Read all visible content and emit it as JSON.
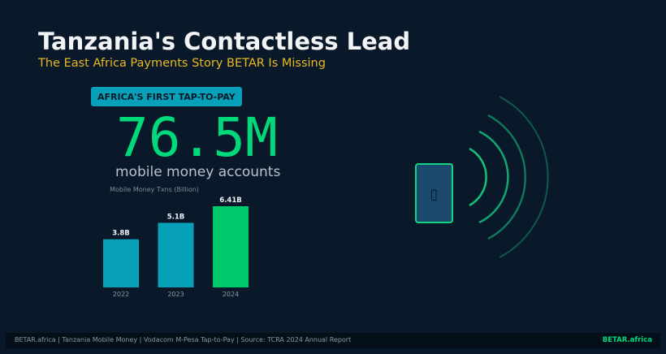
{
  "header": {
    "title": "Tanzania's Contactless Lead",
    "subtitle": "The East Africa Payments Story BETAR Is Missing"
  },
  "badge": {
    "label": "AFRICA'S FIRST TAP-TO-PAY"
  },
  "stat": {
    "value": "76.5M",
    "label": "mobile money accounts"
  },
  "phone": {
    "glyph": "▯"
  },
  "chart_data": {
    "type": "bar",
    "title": "Mobile Money Txns (Billion)",
    "categories": [
      "2022",
      "2023",
      "2024"
    ],
    "values": [
      3.8,
      5.1,
      6.41
    ],
    "data_labels": [
      "3.8B",
      "5.1B",
      "6.41B"
    ],
    "colors": [
      "#06a0b8",
      "#06a0b8",
      "#00c96b"
    ],
    "ylim": [
      0,
      6.41
    ],
    "grid": false
  },
  "footer": {
    "left": "BETAR.africa | Tanzania Mobile Money | Vodacom M-Pesa Tap-to-Pay | Source: TCRA 2024 Annual Report",
    "right": "BETAR.africa"
  }
}
